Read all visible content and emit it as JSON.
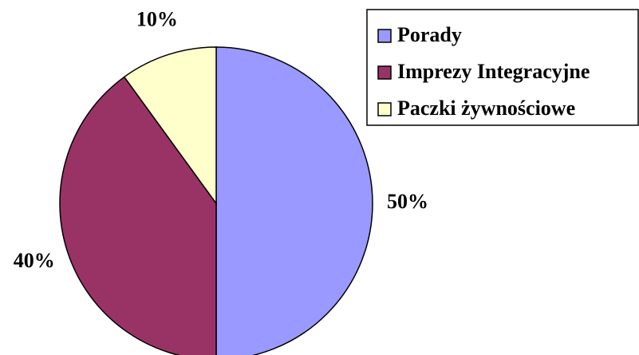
{
  "chart_data": {
    "type": "pie",
    "categories": [
      "Porady",
      "Imprezy Integracyjne",
      "Paczki żywnościowe"
    ],
    "values": [
      50,
      40,
      10
    ],
    "value_labels": [
      "50%",
      "40%",
      "10%"
    ],
    "colors": [
      "#9999ff",
      "#993366",
      "#ffffcc"
    ],
    "legend": "top-right"
  }
}
